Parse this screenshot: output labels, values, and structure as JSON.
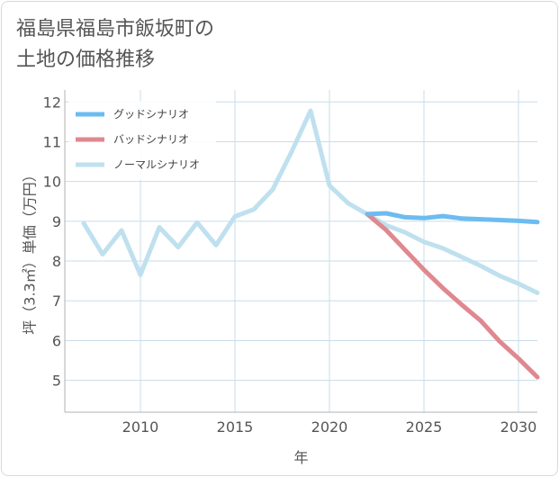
{
  "chart_data": {
    "type": "line",
    "title_line1": "福島県福島市飯坂町の",
    "title_line2": "土地の価格推移",
    "xlabel": "年",
    "ylabel": "坪（3.3㎡）単価（万円）",
    "xlim": [
      2006,
      2031
    ],
    "ylim": [
      4.2,
      12.3
    ],
    "x_ticks": [
      2010,
      2015,
      2020,
      2025,
      2030
    ],
    "y_ticks": [
      5,
      6,
      7,
      8,
      9,
      10,
      11,
      12
    ],
    "legend_position": "top-left",
    "series": [
      {
        "name": "グッドシナリオ",
        "color": "#6cbcf0",
        "x": [
          2022,
          2023,
          2024,
          2025,
          2026,
          2027,
          2028,
          2029,
          2030,
          2031
        ],
        "values": [
          9.18,
          9.2,
          9.1,
          9.08,
          9.13,
          9.07,
          9.05,
          9.03,
          9.01,
          8.98
        ]
      },
      {
        "name": "バッドシナリオ",
        "color": "#e0888f",
        "x": [
          2022,
          2023,
          2024,
          2025,
          2026,
          2027,
          2028,
          2029,
          2030,
          2031
        ],
        "values": [
          9.18,
          8.78,
          8.28,
          7.78,
          7.32,
          6.9,
          6.5,
          5.98,
          5.55,
          5.08
        ]
      },
      {
        "name": "ノーマルシナリオ",
        "color": "#bfe0ee",
        "x": [
          2007,
          2008,
          2009,
          2010,
          2011,
          2012,
          2013,
          2014,
          2015,
          2016,
          2017,
          2018,
          2019,
          2020,
          2021,
          2022,
          2023,
          2024,
          2025,
          2026,
          2027,
          2028,
          2029,
          2030,
          2031
        ],
        "values": [
          8.95,
          8.17,
          8.77,
          7.65,
          8.85,
          8.35,
          8.97,
          8.4,
          9.12,
          9.3,
          9.8,
          10.75,
          11.78,
          9.9,
          9.45,
          9.18,
          8.9,
          8.72,
          8.48,
          8.32,
          8.1,
          7.88,
          7.63,
          7.43,
          7.2
        ]
      }
    ]
  }
}
